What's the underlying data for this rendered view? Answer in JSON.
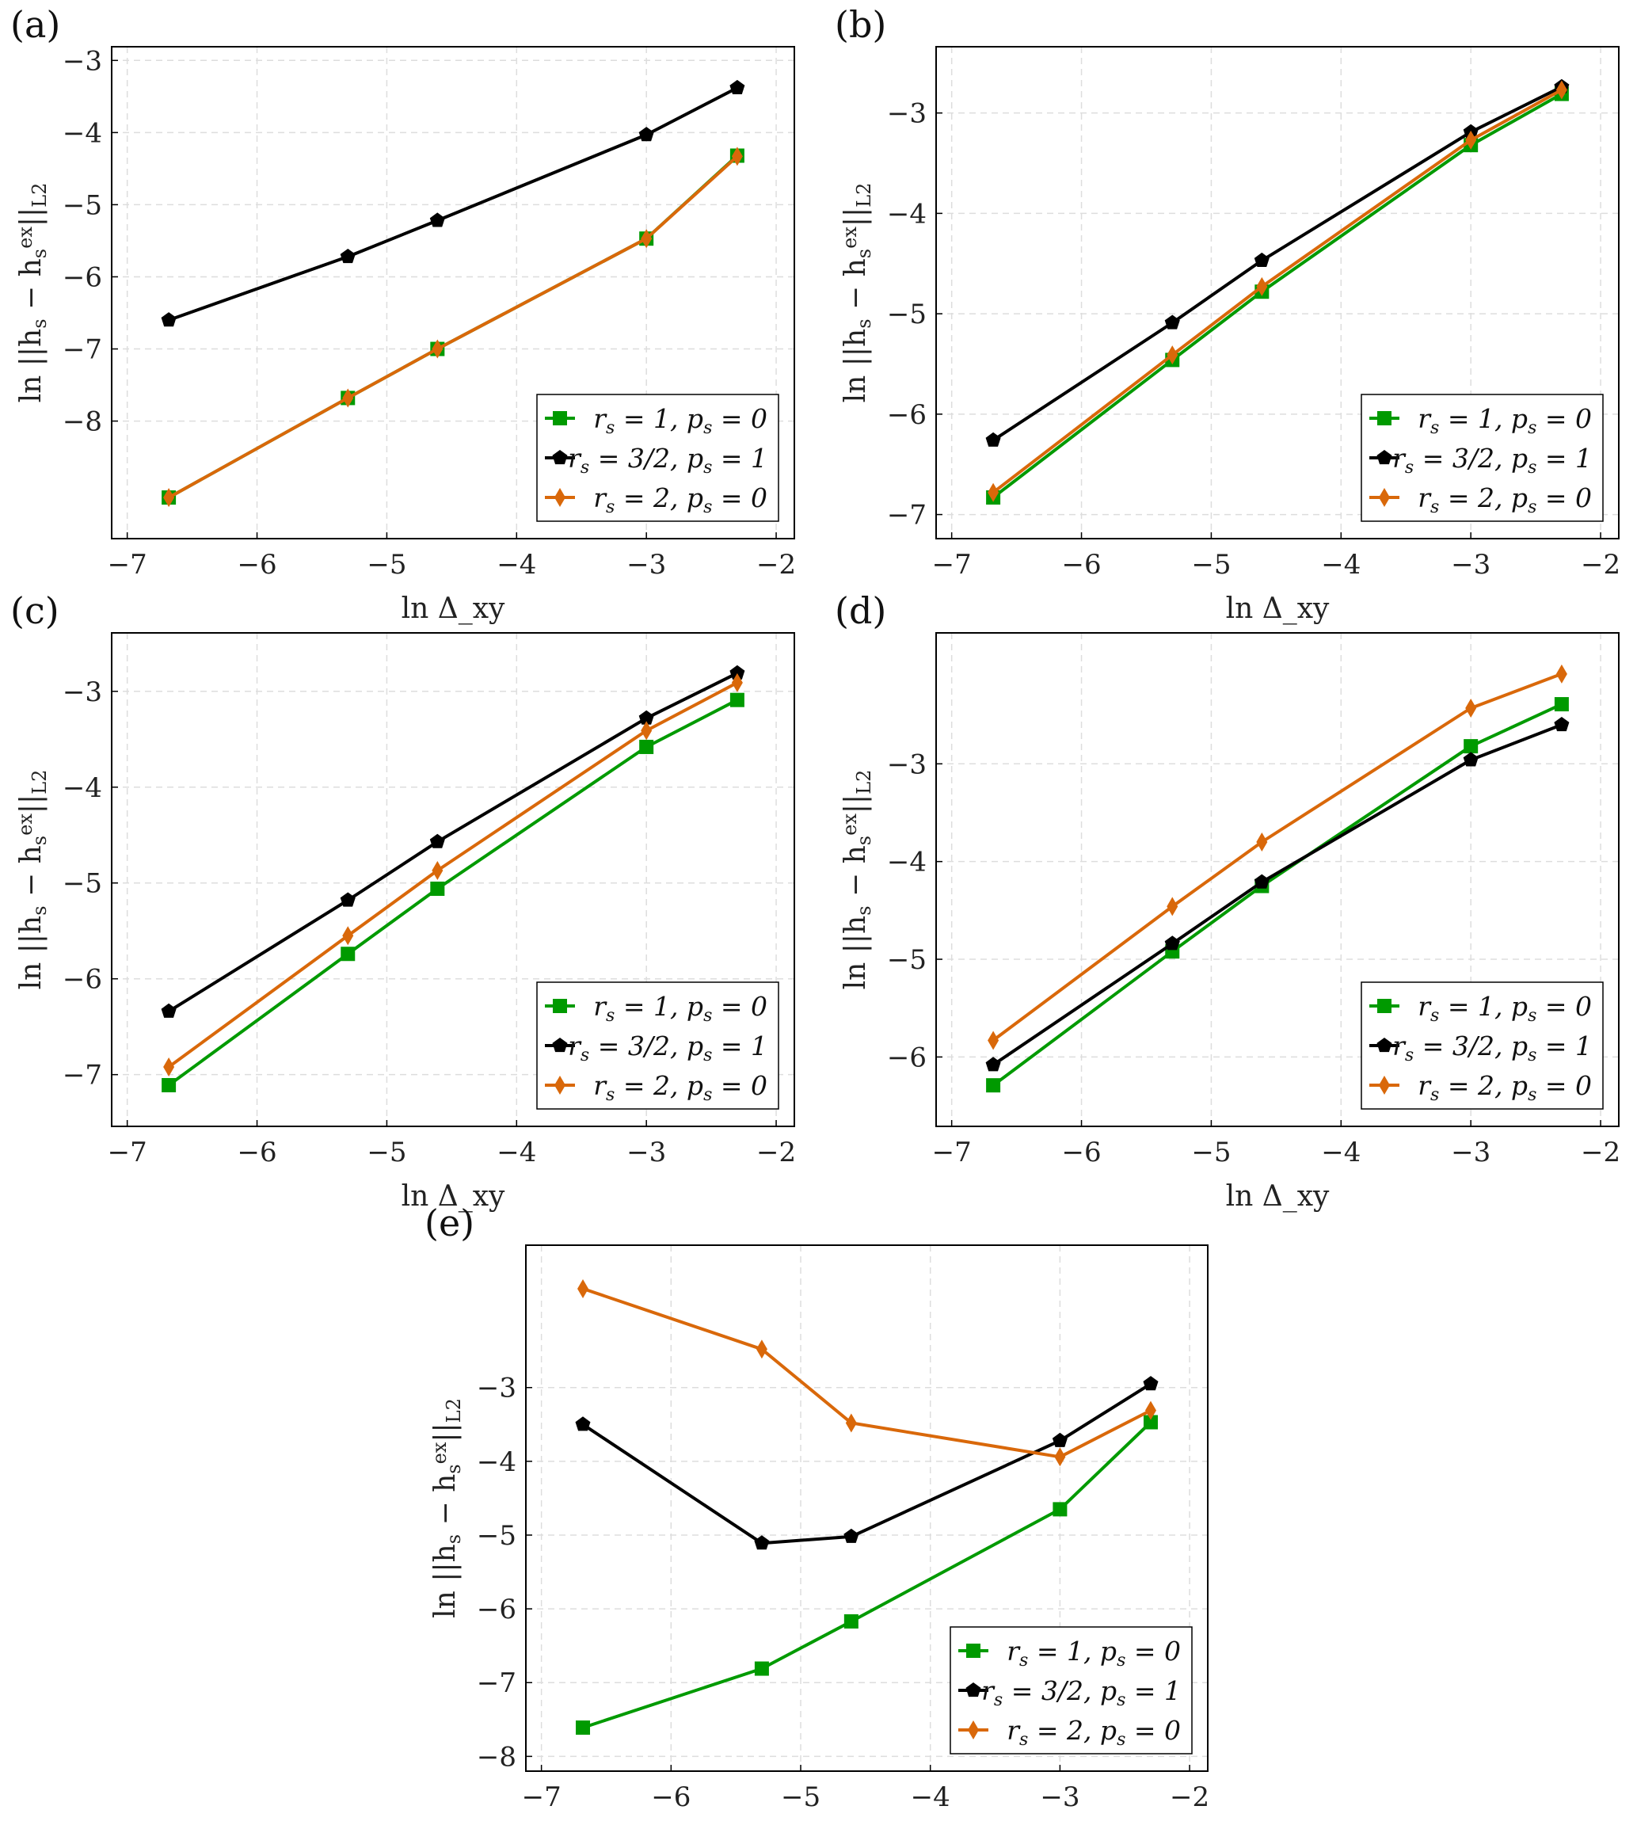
{
  "chart_data": [
    {
      "panel": "(a)",
      "type": "line",
      "xlabel": "ln Δ_xy",
      "ylabel": "ln ||h_s − h_s^ex||_L2",
      "xlim": [
        -7.12,
        -1.86
      ],
      "ylim": [
        -9.63,
        -2.81
      ],
      "xticks": [
        -7,
        -6,
        -5,
        -4,
        -3,
        -2
      ],
      "yticks": [
        -8,
        -7,
        -6,
        -5,
        -4,
        -3
      ],
      "grid": true,
      "legend": "bottom-right",
      "x": [
        -6.68,
        -5.3,
        -4.61,
        -3.0,
        -2.3
      ],
      "series": [
        {
          "name": "r_s = 1, p_s = 0",
          "marker": "square",
          "color": "#009a00",
          "values": [
            -9.06,
            -7.68,
            -7.0,
            -5.47,
            -4.32
          ]
        },
        {
          "name": "r_s = 3/2, p_s = 1",
          "marker": "pentagon",
          "color": "#000000",
          "values": [
            -6.6,
            -5.72,
            -5.22,
            -4.03,
            -3.38
          ]
        },
        {
          "name": "r_s = 2, p_s = 0",
          "marker": "diamond",
          "color": "#d9680a",
          "values": [
            -9.06,
            -7.68,
            -7.0,
            -5.47,
            -4.33
          ]
        }
      ]
    },
    {
      "panel": "(b)",
      "type": "line",
      "xlabel": "ln Δ_xy",
      "ylabel": "ln ||h_s − h_s^ex||_L2",
      "xlim": [
        -7.12,
        -1.86
      ],
      "ylim": [
        -7.24,
        -2.34
      ],
      "xticks": [
        -7,
        -6,
        -5,
        -4,
        -3,
        -2
      ],
      "yticks": [
        -7,
        -6,
        -5,
        -4,
        -3
      ],
      "grid": true,
      "legend": "bottom-right",
      "x": [
        -6.68,
        -5.3,
        -4.61,
        -3.0,
        -2.3
      ],
      "series": [
        {
          "name": "r_s = 1, p_s = 0",
          "marker": "square",
          "color": "#009a00",
          "values": [
            -6.83,
            -5.46,
            -4.78,
            -3.32,
            -2.81
          ]
        },
        {
          "name": "r_s = 3/2, p_s = 1",
          "marker": "pentagon",
          "color": "#000000",
          "values": [
            -6.26,
            -5.09,
            -4.47,
            -3.19,
            -2.74
          ]
        },
        {
          "name": "r_s = 2, p_s = 0",
          "marker": "diamond",
          "color": "#d9680a",
          "values": [
            -6.78,
            -5.41,
            -4.73,
            -3.27,
            -2.77
          ]
        }
      ]
    },
    {
      "panel": "(c)",
      "type": "line",
      "xlabel": "ln Δ_xy",
      "ylabel": "ln ||h_s − h_s^ex||_L2",
      "xlim": [
        -7.12,
        -1.86
      ],
      "ylim": [
        -7.54,
        -2.39
      ],
      "xticks": [
        -7,
        -6,
        -5,
        -4,
        -3,
        -2
      ],
      "yticks": [
        -7,
        -6,
        -5,
        -4,
        -3
      ],
      "grid": true,
      "legend": "bottom-right",
      "x": [
        -6.68,
        -5.3,
        -4.61,
        -3.0,
        -2.3
      ],
      "series": [
        {
          "name": "r_s = 1, p_s = 0",
          "marker": "square",
          "color": "#009a00",
          "values": [
            -7.11,
            -5.74,
            -5.06,
            -3.58,
            -3.09
          ]
        },
        {
          "name": "r_s = 3/2, p_s = 1",
          "marker": "pentagon",
          "color": "#000000",
          "values": [
            -6.34,
            -5.18,
            -4.57,
            -3.28,
            -2.81
          ]
        },
        {
          "name": "r_s = 2, p_s = 0",
          "marker": "diamond",
          "color": "#d9680a",
          "values": [
            -6.92,
            -5.55,
            -4.87,
            -3.41,
            -2.91
          ]
        }
      ]
    },
    {
      "panel": "(d)",
      "type": "line",
      "xlabel": "ln Δ_xy",
      "ylabel": "ln ||h_s − h_s^ex||_L2",
      "xlim": [
        -7.12,
        -1.86
      ],
      "ylim": [
        -6.71,
        -1.66
      ],
      "xticks": [
        -7,
        -6,
        -5,
        -4,
        -3,
        -2
      ],
      "yticks": [
        -6,
        -5,
        -4,
        -3
      ],
      "grid": true,
      "legend": "bottom-right",
      "x": [
        -6.68,
        -5.3,
        -4.61,
        -3.0,
        -2.3
      ],
      "series": [
        {
          "name": "r_s = 1, p_s = 0",
          "marker": "square",
          "color": "#009a00",
          "values": [
            -6.29,
            -4.92,
            -4.25,
            -2.82,
            -2.39
          ]
        },
        {
          "name": "r_s = 3/2, p_s = 1",
          "marker": "pentagon",
          "color": "#000000",
          "values": [
            -6.08,
            -4.84,
            -4.21,
            -2.96,
            -2.6
          ]
        },
        {
          "name": "r_s = 2, p_s = 0",
          "marker": "diamond",
          "color": "#d9680a",
          "values": [
            -5.83,
            -4.46,
            -3.8,
            -2.43,
            -2.08
          ]
        }
      ]
    },
    {
      "panel": "(e)",
      "type": "line",
      "xlabel": "ln Δ_xy",
      "ylabel": "ln ||h_s − h_s^ex||_L2",
      "xlim": [
        -7.12,
        -1.86
      ],
      "ylim": [
        -8.2,
        -1.07
      ],
      "xticks": [
        -7,
        -6,
        -5,
        -4,
        -3,
        -2
      ],
      "yticks": [
        -8,
        -7,
        -6,
        -5,
        -4,
        -3
      ],
      "grid": true,
      "legend": "bottom-right",
      "x": [
        -6.68,
        -5.3,
        -4.61,
        -3.0,
        -2.3
      ],
      "series": [
        {
          "name": "r_s = 1, p_s = 0",
          "marker": "square",
          "color": "#009a00",
          "values": [
            -7.61,
            -6.81,
            -6.17,
            -4.65,
            -3.47
          ]
        },
        {
          "name": "r_s = 3/2, p_s = 1",
          "marker": "pentagon",
          "color": "#000000",
          "values": [
            -3.5,
            -5.11,
            -5.02,
            -3.72,
            -2.95
          ]
        },
        {
          "name": "r_s = 2, p_s = 0",
          "marker": "diamond",
          "color": "#d9680a",
          "values": [
            -1.66,
            -2.48,
            -3.48,
            -3.94,
            -3.31
          ]
        }
      ]
    }
  ]
}
